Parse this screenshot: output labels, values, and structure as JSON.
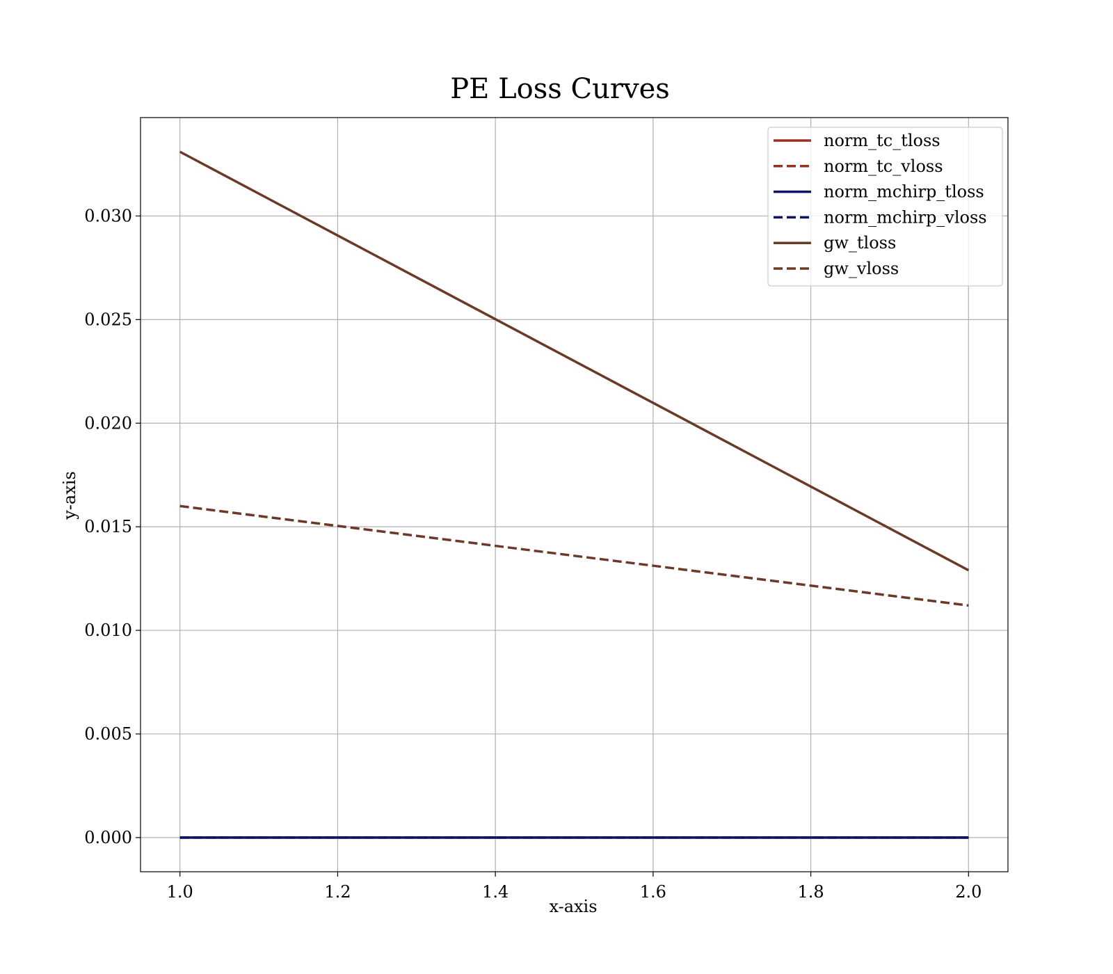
{
  "chart_data": {
    "type": "line",
    "title": "PE Loss Curves",
    "xlabel": "x-axis",
    "ylabel": "y-axis",
    "x": [
      1.0,
      2.0
    ],
    "xlim": [
      0.95,
      2.05
    ],
    "ylim": [
      -0.00165,
      0.03475
    ],
    "xticks": [
      "1.0",
      "1.2",
      "1.4",
      "1.6",
      "1.8",
      "2.0"
    ],
    "yticks": [
      "0.000",
      "0.005",
      "0.010",
      "0.015",
      "0.020",
      "0.025",
      "0.030"
    ],
    "grid": true,
    "legend_position": "top-right",
    "series": [
      {
        "name": "norm_tc_tloss",
        "values": [
          0.0,
          0.0
        ],
        "color": "#9b3022",
        "style": "solid"
      },
      {
        "name": "norm_tc_vloss",
        "values": [
          0.0,
          0.0
        ],
        "color": "#9b3022",
        "style": "dashed"
      },
      {
        "name": "norm_mchirp_tloss",
        "values": [
          0.0,
          0.0
        ],
        "color": "#0c1463",
        "style": "solid"
      },
      {
        "name": "norm_mchirp_vloss",
        "values": [
          0.0,
          0.0
        ],
        "color": "#0c1463",
        "style": "dashed"
      },
      {
        "name": "gw_tloss",
        "values": [
          0.0331,
          0.0129
        ],
        "color": "#6b3a26",
        "style": "solid"
      },
      {
        "name": "gw_vloss",
        "values": [
          0.016,
          0.0112
        ],
        "color": "#6b3a26",
        "style": "dashed"
      }
    ]
  }
}
